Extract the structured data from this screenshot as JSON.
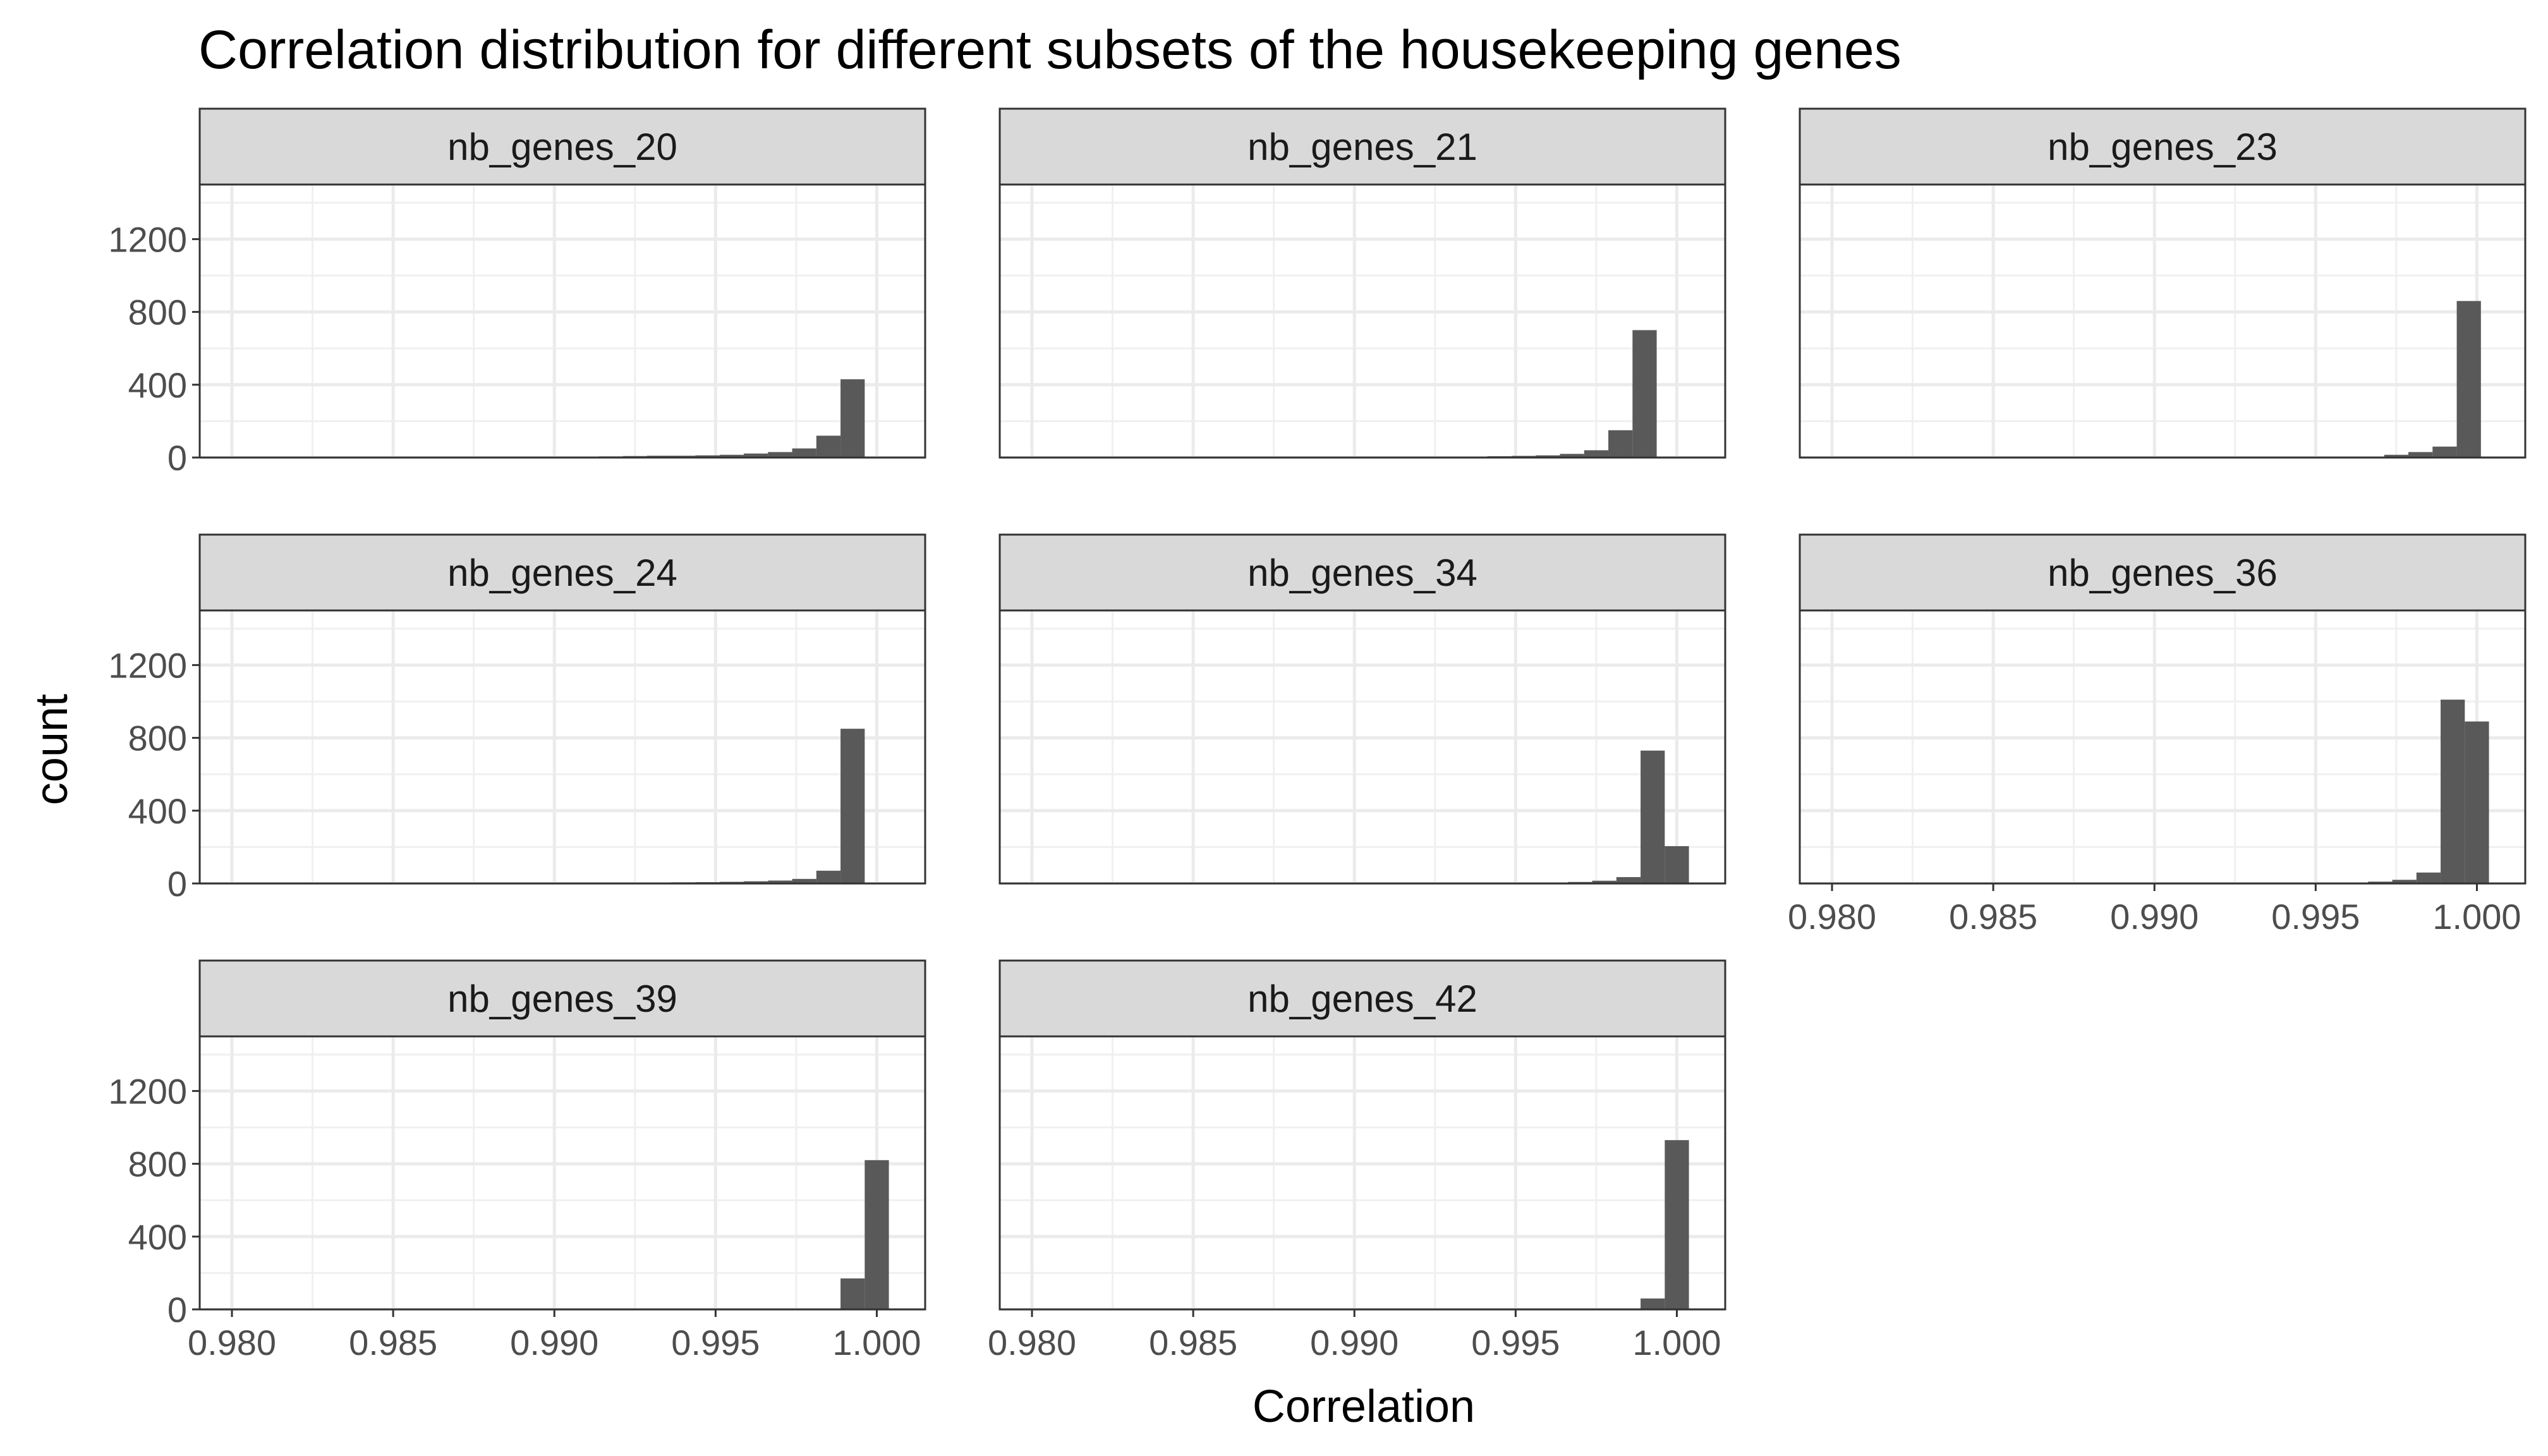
{
  "chart_data": {
    "type": "bar",
    "subtype": "faceted-histogram",
    "title": "Correlation distribution for different subsets of the housekeeping genes",
    "xlabel": "Correlation",
    "ylabel": "count",
    "xlim": [
      0.979,
      1.0015
    ],
    "ylim": [
      0,
      1500
    ],
    "x_ticks": [
      0.98,
      0.985,
      0.99,
      0.995,
      1.0
    ],
    "x_tick_labels": [
      "0.980",
      "0.985",
      "0.990",
      "0.995",
      "1.000"
    ],
    "y_ticks": [
      0,
      400,
      800,
      1200
    ],
    "y_tick_labels": [
      "0",
      "400",
      "800",
      "1200"
    ],
    "grid": true,
    "bar_color": "#595959",
    "strip_fill": "#d9d9d9",
    "bin_width": 0.00075,
    "facets": [
      {
        "name": "nb_genes_20",
        "bin_centers": [
          0.98875,
          0.9895,
          0.99025,
          0.991,
          0.99175,
          0.9925,
          0.99325,
          0.994,
          0.99475,
          0.9955,
          0.99625,
          0.997,
          0.99775,
          0.9985,
          0.99925
        ],
        "counts": [
          2,
          3,
          3,
          5,
          6,
          8,
          10,
          10,
          12,
          15,
          22,
          30,
          50,
          120,
          430
        ]
      },
      {
        "name": "nb_genes_21",
        "bin_centers": [
          0.9915,
          0.99225,
          0.993,
          0.99375,
          0.9945,
          0.99525,
          0.996,
          0.99675,
          0.9975,
          0.99825,
          0.999
        ],
        "counts": [
          2,
          3,
          4,
          5,
          7,
          9,
          12,
          20,
          40,
          150,
          700
        ]
      },
      {
        "name": "nb_genes_23",
        "bin_centers": [
          0.99675,
          0.9975,
          0.99825,
          0.999,
          0.99975
        ],
        "counts": [
          5,
          15,
          30,
          60,
          860
        ]
      },
      {
        "name": "nb_genes_24",
        "bin_centers": [
          0.98875,
          0.9895,
          0.99025,
          0.991,
          0.99175,
          0.9925,
          0.99325,
          0.994,
          0.99475,
          0.9955,
          0.99625,
          0.997,
          0.99775,
          0.9985,
          0.99925,
          1.0
        ],
        "counts": [
          2,
          2,
          3,
          3,
          4,
          5,
          5,
          6,
          7,
          9,
          12,
          16,
          25,
          70,
          850,
          5
        ]
      },
      {
        "name": "nb_genes_34",
        "bin_centers": [
          0.9955,
          0.99625,
          0.997,
          0.99775,
          0.9985,
          0.99925,
          1.0
        ],
        "counts": [
          3,
          5,
          8,
          15,
          35,
          730,
          205
        ]
      },
      {
        "name": "nb_genes_36",
        "bin_centers": [
          0.99625,
          0.997,
          0.99775,
          0.9985,
          0.99925,
          1.0
        ],
        "counts": [
          5,
          10,
          20,
          60,
          1010,
          890
        ]
      },
      {
        "name": "nb_genes_39",
        "bin_centers": [
          0.9985,
          0.99925,
          1.0
        ],
        "counts": [
          5,
          170,
          820
        ]
      },
      {
        "name": "nb_genes_42",
        "bin_centers": [
          0.99925,
          1.0
        ],
        "counts": [
          60,
          930
        ]
      }
    ]
  }
}
